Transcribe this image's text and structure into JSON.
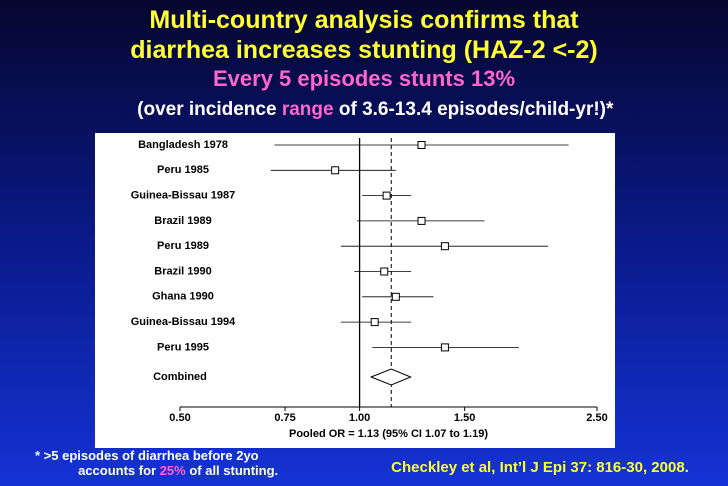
{
  "slide": {
    "title_lines": [
      "Multi-country analysis confirms that",
      "diarrhea increases stunting (HAZ-2 <-2)"
    ],
    "subtitle": "Every 5 episodes stunts 13%",
    "range_line": [
      "(over incidence ",
      "range",
      " of 3.6-13.4 episodes/child-yr!)*"
    ],
    "footnote_line1": "* >5 episodes of diarrhea before 2yo",
    "footnote_line2": [
      "accounts for ",
      "25%",
      " of all stunting."
    ],
    "citation": "Checkley et al, Int’l J Epi 37: 816-30, 2008."
  },
  "chart_data": {
    "type": "forest",
    "categories": [
      "Bangladesh 1978",
      "Peru 1985",
      "Guinea-Bissau 1987",
      "Brazil 1989",
      "Peru 1989",
      "Brazil 1990",
      "Ghana 1990",
      "Guinea-Bissau 1994",
      "Peru 1995"
    ],
    "values": [
      1.27,
      0.91,
      1.11,
      1.27,
      1.39,
      1.1,
      1.15,
      1.06,
      1.39
    ],
    "lower": [
      0.72,
      0.71,
      1.01,
      0.99,
      0.93,
      0.98,
      1.01,
      0.93,
      1.05
    ],
    "upper": [
      2.24,
      1.15,
      1.22,
      1.62,
      2.07,
      1.22,
      1.33,
      1.22,
      1.85
    ],
    "combined": {
      "label": "Combined",
      "value": 1.13,
      "lower": 1.07,
      "upper": 1.19
    },
    "x_label": "Pooled OR = 1.13 (95% CI 1.07 to 1.19)",
    "x_scale": "log",
    "xlim": [
      0.5,
      2.5
    ],
    "xticks": [
      {
        "value": 0.5,
        "label": "0.50"
      },
      {
        "value": 0.75,
        "label": "0.75"
      },
      {
        "value": 1,
        "label": "1.00"
      },
      {
        "value": 1.5,
        "label": "1.50"
      },
      {
        "value": 2.5,
        "label": "2.50"
      }
    ],
    "color": "#000000"
  }
}
